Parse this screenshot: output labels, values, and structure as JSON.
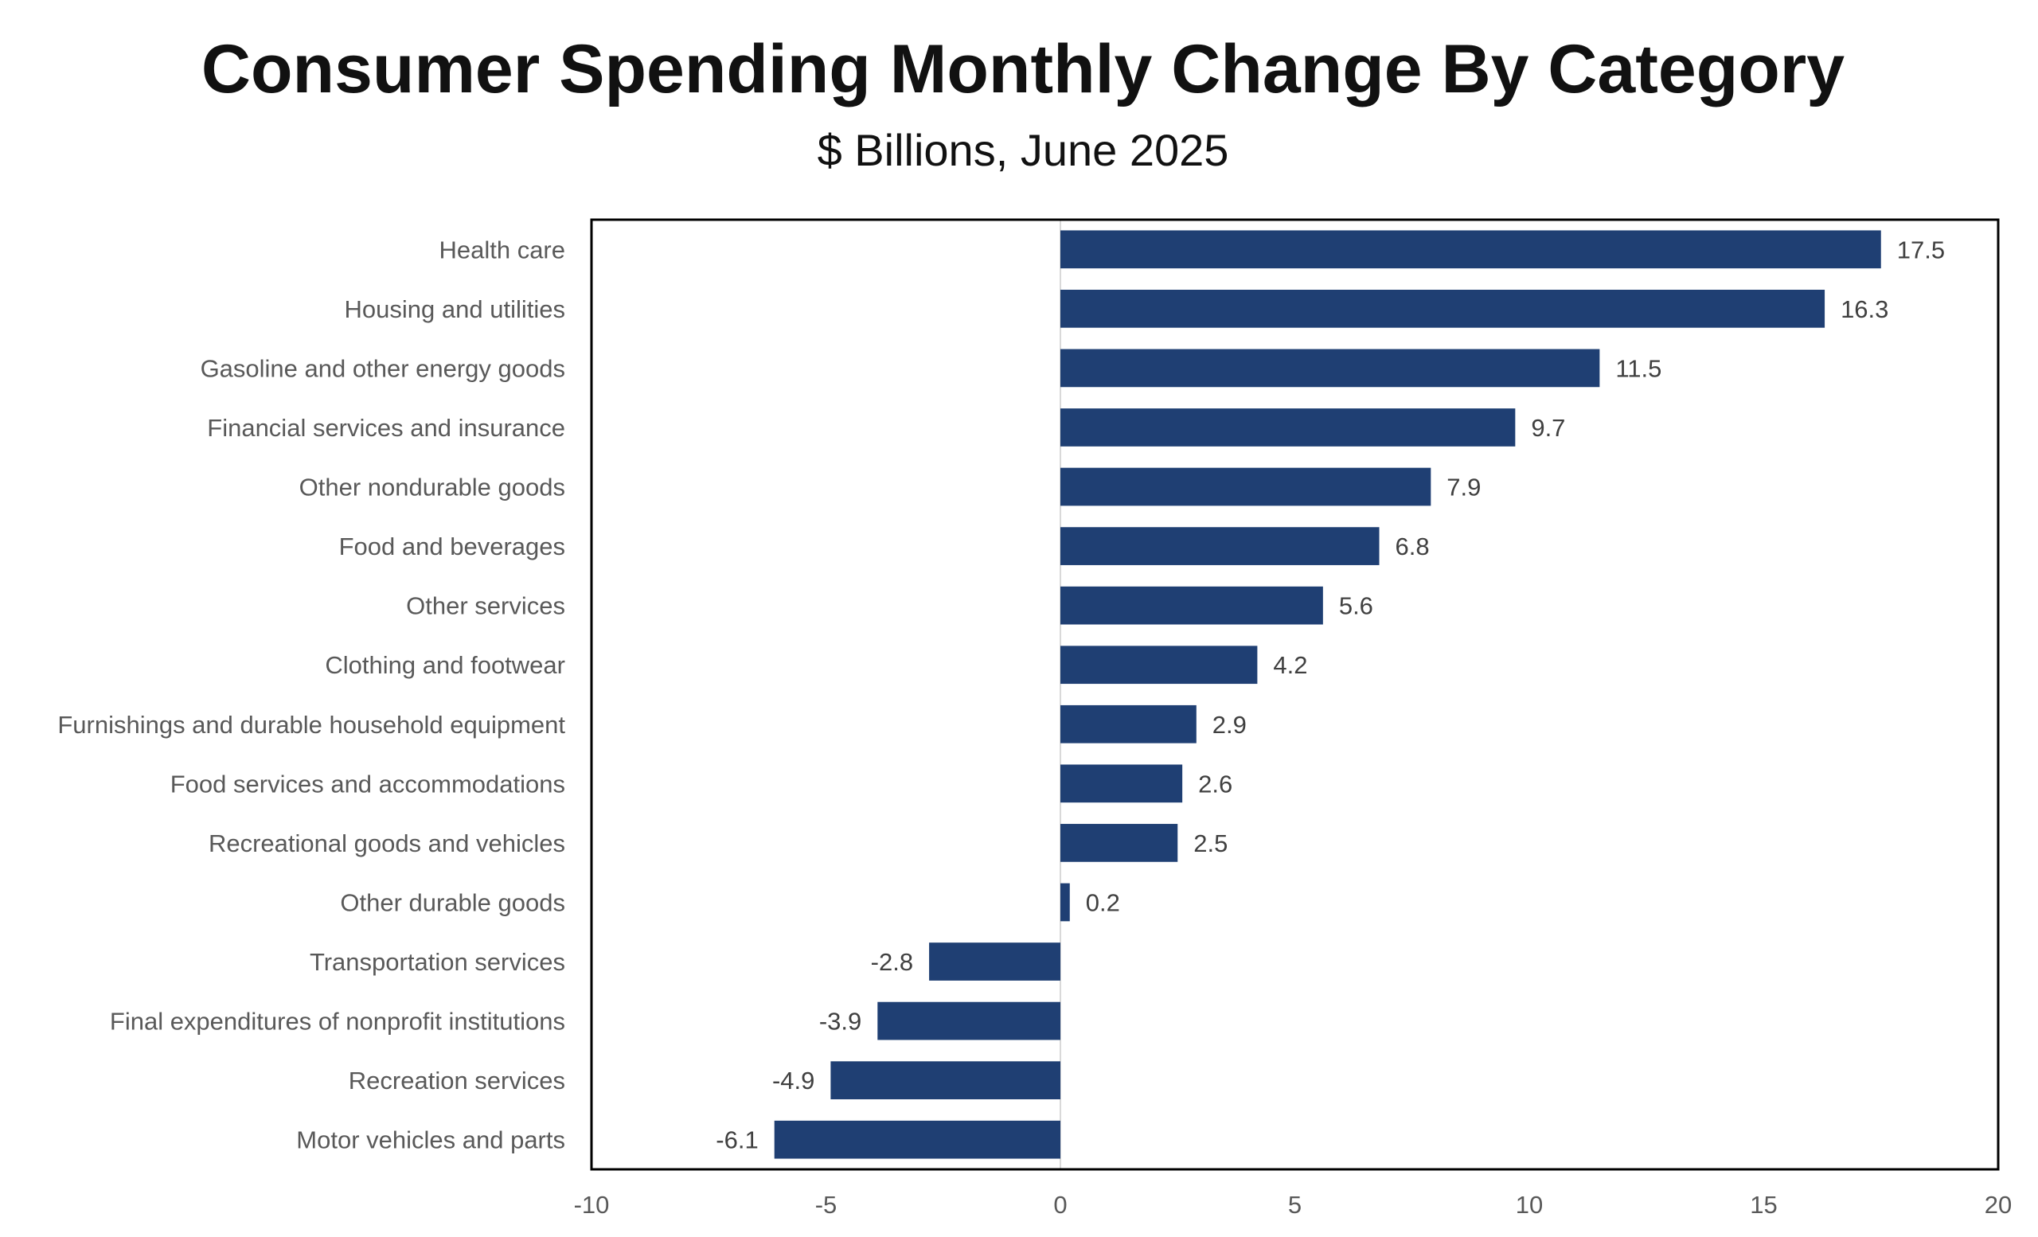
{
  "chart_data": {
    "type": "bar",
    "orientation": "horizontal",
    "title": "Consumer Spending Monthly Change By Category",
    "subtitle": "$ Billions, June 2025",
    "categories": [
      "Health care",
      "Housing and utilities",
      "Gasoline and other energy goods",
      "Financial services and insurance",
      "Other nondurable goods",
      "Food and beverages",
      "Other services",
      "Clothing and footwear",
      "Furnishings and durable household equipment",
      "Food services and accommodations",
      "Recreational goods and vehicles",
      "Other durable goods",
      "Transportation services",
      "Final expenditures of nonprofit institutions",
      "Recreation services",
      "Motor vehicles and parts"
    ],
    "values": [
      17.5,
      16.3,
      11.5,
      9.7,
      7.9,
      6.8,
      5.6,
      4.2,
      2.9,
      2.6,
      2.5,
      0.2,
      -2.8,
      -3.9,
      -4.9,
      -6.1
    ],
    "xlim": [
      -10,
      20
    ],
    "xticks": [
      -10,
      -5,
      0,
      5,
      10,
      15,
      20
    ],
    "grid": false,
    "legend": "none",
    "bar_color": "#1F3F73"
  }
}
